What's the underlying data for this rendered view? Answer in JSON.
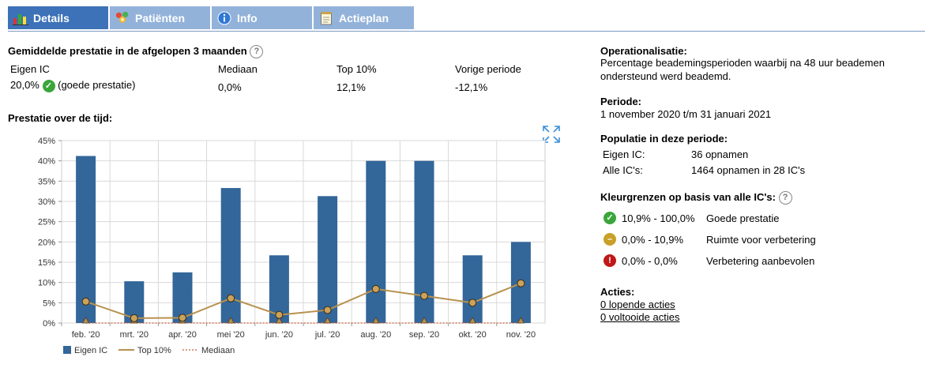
{
  "tabs": [
    {
      "label": "Details",
      "icon": "bar-chart-icon"
    },
    {
      "label": "Patiënten",
      "icon": "people-icon"
    },
    {
      "label": "Info",
      "icon": "info-icon"
    },
    {
      "label": "Actieplan",
      "icon": "notepad-icon"
    }
  ],
  "summary": {
    "title": "Gemiddelde prestatie in de afgelopen 3 maanden",
    "help": "?",
    "columns": [
      {
        "header": "Eigen IC",
        "value": "20,0%",
        "note": "(goede prestatie)"
      },
      {
        "header": "Mediaan",
        "value": "0,0%"
      },
      {
        "header": "Top 10%",
        "value": "12,1%"
      },
      {
        "header": "Vorige periode",
        "value": "-12,1%"
      }
    ]
  },
  "chart_section": {
    "title": "Prestatie over de tijd:",
    "expand_icon": "expand-arrows-icon"
  },
  "chart_data": {
    "type": "bar",
    "categories": [
      "feb. '20",
      "mrt. '20",
      "apr. '20",
      "mei '20",
      "jun. '20",
      "jul. '20",
      "aug. '20",
      "sep. '20",
      "okt. '20",
      "nov. '20"
    ],
    "yticks": [
      "0%",
      "5%",
      "10%",
      "15%",
      "20%",
      "25%",
      "30%",
      "35%",
      "40%",
      "45%"
    ],
    "ylim": [
      0,
      45
    ],
    "grid": true,
    "series": [
      {
        "name": "Eigen IC",
        "type": "bar",
        "color": "#336699",
        "values": [
          41.2,
          10.3,
          12.5,
          33.3,
          16.7,
          31.3,
          40.0,
          40.0,
          16.7,
          20.0
        ]
      },
      {
        "name": "Top 10%",
        "type": "line",
        "color": "#b8914f",
        "values": [
          5.3,
          1.2,
          1.3,
          6.1,
          2.0,
          3.2,
          8.4,
          6.7,
          5.0,
          9.8
        ]
      },
      {
        "name": "Mediaan",
        "type": "line-dotted",
        "color": "#c0603a",
        "values": [
          0,
          0,
          0,
          0,
          0,
          0,
          0,
          0,
          0,
          0
        ]
      }
    ],
    "legend_placement": "bottom-left"
  },
  "operationalisatie": {
    "title": "Operationalisatie:",
    "line1": "Percentage beademingsperioden waarbij na 48 uur beademen",
    "line2": "ondersteund werd beademd."
  },
  "periode": {
    "title": "Periode:",
    "text": "1 november 2020 t/m 31 januari 2021"
  },
  "populatie": {
    "title": "Populatie in deze periode:",
    "rows": [
      {
        "label": "Eigen IC:",
        "value": "36 opnamen"
      },
      {
        "label": "Alle IC's:",
        "value": "1464 opnamen in 28 IC's"
      }
    ]
  },
  "kleurgrenzen": {
    "title": "Kleurgrenzen op basis van alle IC's:",
    "help": "?",
    "rows": [
      {
        "range": "10,9% - 100,0%",
        "label": "Goede prestatie",
        "icon": "check-icon"
      },
      {
        "range": "0,0% - 10,9%",
        "label": "Ruimte voor verbetering",
        "icon": "minus-icon"
      },
      {
        "range": "0,0% - 0,0%",
        "label": "Verbetering aanbevolen",
        "icon": "exclamation-icon"
      }
    ]
  },
  "acties": {
    "title": "Acties:",
    "lopende": "0 lopende acties",
    "voltooide": "0 voltooide acties"
  }
}
